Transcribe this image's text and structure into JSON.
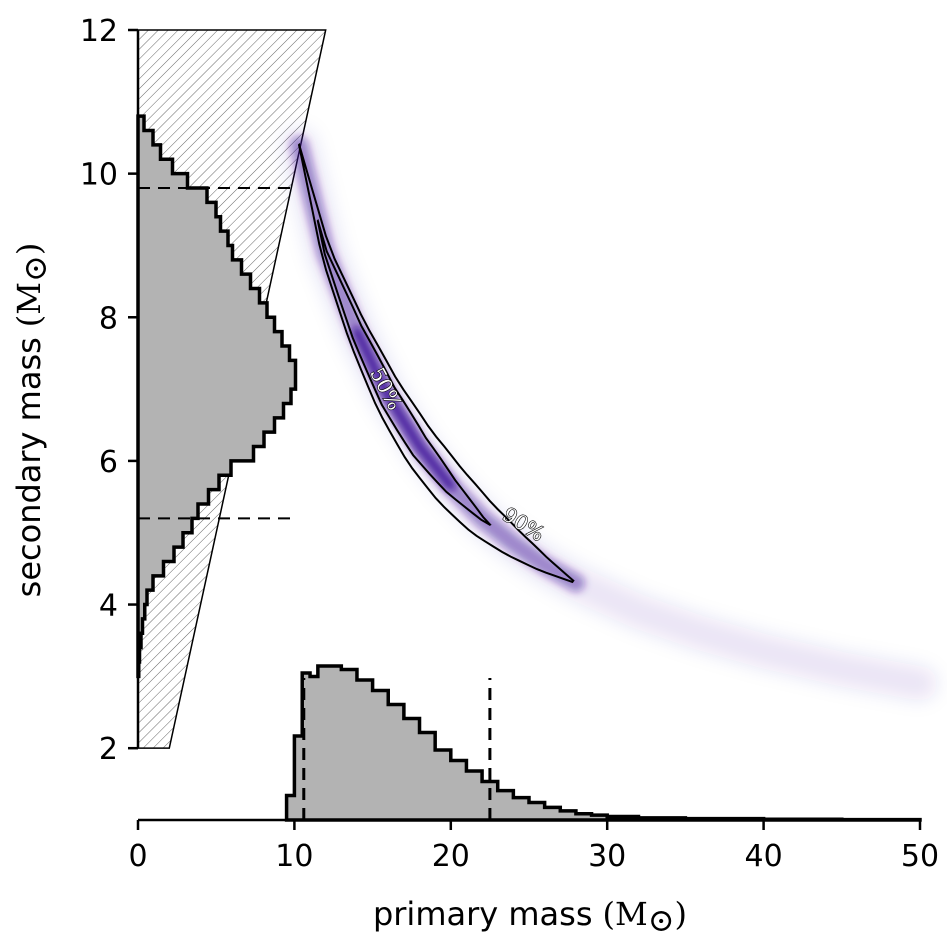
{
  "chart_data": {
    "type": "scatter",
    "xlabel": "primary mass",
    "ylabel": "secondary mass",
    "unit_label": "(M",
    "unit_close": ")",
    "unit_symbol": "⊙",
    "xlim": [
      0,
      50
    ],
    "ylim": [
      1,
      12
    ],
    "xticks": [
      0,
      10,
      20,
      30,
      40,
      50
    ],
    "yticks": [
      2,
      4,
      6,
      8,
      10,
      12
    ],
    "colors": {
      "histogram_fill": "#b3b3b3",
      "histogram_edge": "#000000",
      "posterior": "#3d0f99",
      "hatch": "#555555"
    },
    "excluded_region": {
      "description_shape": "hatched wedge where secondary exceeds primary",
      "vertices": [
        [
          0,
          2
        ],
        [
          2,
          2
        ],
        [
          12,
          12
        ],
        [
          0,
          12
        ]
      ]
    },
    "primary_histogram": {
      "bin_edges": [
        9.5,
        10,
        10.5,
        11,
        11.5,
        12,
        13,
        14,
        15,
        16,
        17,
        18,
        19,
        20,
        21,
        22,
        23,
        24,
        25,
        26,
        27,
        28,
        29,
        30,
        32,
        35,
        40,
        45,
        50
      ],
      "heights": [
        0.35,
        1.2,
        2.1,
        2.05,
        2.2,
        2.2,
        2.15,
        2.0,
        1.85,
        1.65,
        1.45,
        1.25,
        1.0,
        0.85,
        0.7,
        0.55,
        0.42,
        0.32,
        0.25,
        0.18,
        0.13,
        0.09,
        0.07,
        0.05,
        0.03,
        0.02,
        0.01,
        0.005
      ],
      "interval_90": [
        10.6,
        22.5
      ]
    },
    "secondary_histogram": {
      "bin_edges": [
        3.0,
        3.2,
        3.4,
        3.6,
        3.8,
        4.0,
        4.2,
        4.4,
        4.6,
        4.8,
        5.0,
        5.2,
        5.4,
        5.6,
        5.8,
        6.0,
        6.2,
        6.4,
        6.6,
        6.8,
        7.0,
        7.4,
        7.6,
        7.8,
        8.0,
        8.2,
        8.4,
        8.6,
        8.8,
        9.0,
        9.2,
        9.4,
        9.6,
        9.8,
        10.0,
        10.2,
        10.4,
        10.6,
        10.8
      ],
      "widths": [
        0.05,
        0.1,
        0.2,
        0.3,
        0.45,
        0.6,
        1.0,
        1.7,
        2.4,
        3.0,
        3.6,
        4.0,
        4.7,
        5.4,
        6.2,
        7.7,
        8.4,
        9.1,
        9.7,
        10.2,
        10.5,
        10.1,
        9.6,
        9.1,
        8.6,
        8.1,
        7.5,
        6.9,
        6.3,
        6.0,
        5.5,
        5.2,
        4.6,
        3.3,
        2.3,
        1.5,
        1.0,
        0.4
      ],
      "interval_90": [
        5.2,
        9.8
      ]
    },
    "posterior_ridge": [
      [
        10.3,
        10.4
      ],
      [
        12,
        8.9
      ],
      [
        14,
        7.8
      ],
      [
        16,
        6.9
      ],
      [
        18,
        6.2
      ],
      [
        20,
        5.65
      ],
      [
        22,
        5.2
      ],
      [
        24,
        4.85
      ],
      [
        26,
        4.55
      ],
      [
        28,
        4.3
      ],
      [
        32,
        3.9
      ],
      [
        36,
        3.6
      ],
      [
        40,
        3.35
      ],
      [
        45,
        3.1
      ],
      [
        50,
        2.9
      ]
    ],
    "contours": [
      {
        "label": "50%",
        "level": 50
      },
      {
        "label": "90%",
        "level": 90
      }
    ]
  }
}
